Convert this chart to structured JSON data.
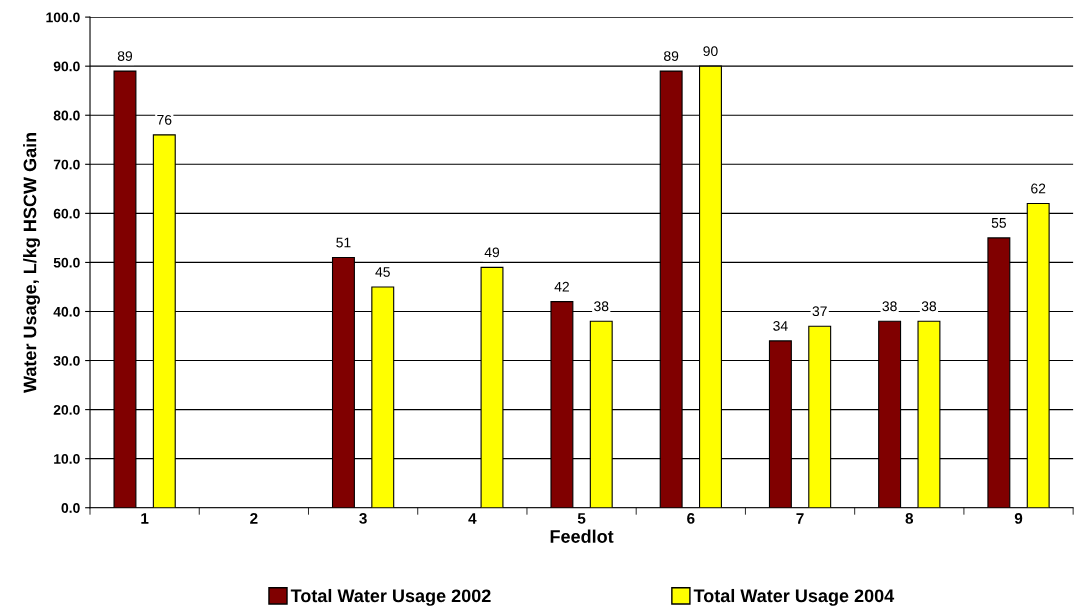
{
  "chart_data": {
    "type": "bar",
    "xlabel": "Feedlot",
    "ylabel": "Water Usage, L/kg HSCW Gain",
    "categories": [
      "1",
      "2",
      "3",
      "4",
      "5",
      "6",
      "7",
      "8",
      "9"
    ],
    "series": [
      {
        "name": "Total Water Usage 2002",
        "color": "#800000",
        "values": [
          89,
          null,
          51,
          null,
          42,
          89,
          34,
          38,
          55
        ]
      },
      {
        "name": "Total Water Usage 2004",
        "color": "#ffff00",
        "values": [
          76,
          null,
          45,
          49,
          38,
          90,
          37,
          38,
          62
        ]
      }
    ],
    "ylim": [
      0,
      100
    ],
    "yticks": [
      {
        "value": 0,
        "label": "0.0"
      },
      {
        "value": 10,
        "label": "10.0"
      },
      {
        "value": 20,
        "label": "20.0"
      },
      {
        "value": 30,
        "label": "30.0"
      },
      {
        "value": 40,
        "label": "40.0"
      },
      {
        "value": 50,
        "label": "50.0"
      },
      {
        "value": 60,
        "label": "60.0"
      },
      {
        "value": 70,
        "label": "70.0"
      },
      {
        "value": 80,
        "label": "80.0"
      },
      {
        "value": 90,
        "label": "90.0"
      },
      {
        "value": 100,
        "label": "100.0"
      }
    ],
    "grid": "y",
    "legend": "bottom",
    "data_labels": true
  }
}
